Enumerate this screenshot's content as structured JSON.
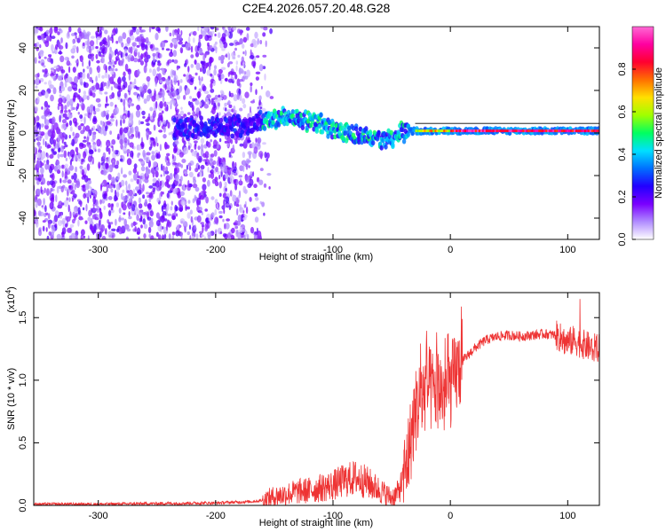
{
  "figure_title": "C2E4.2026.057.20.48.G28",
  "chart_data": [
    {
      "type": "heatmap",
      "title": "C2E4.2026.057.20.48.G28",
      "xlabel": "Height of straight line (km)",
      "ylabel": "Frequency (Hz)",
      "xlim": [
        -355,
        127
      ],
      "ylim": [
        -50,
        50
      ],
      "xticks": [
        -300,
        -200,
        -100,
        0,
        100
      ],
      "yticks": [
        -40,
        -20,
        0,
        20,
        40
      ],
      "xtick_labels": [
        "-300",
        "-200",
        "-100",
        "0",
        "100"
      ],
      "ytick_labels": [
        "-40",
        "-20",
        "0",
        "20",
        "40"
      ],
      "colorbar": {
        "label": "Normalized spectral amplitude",
        "range": [
          0,
          1
        ],
        "ticks": [
          0.0,
          0.2,
          0.4,
          0.6,
          0.8
        ],
        "tick_labels": [
          "0.0",
          "0.2",
          "0.4",
          "0.6",
          "0.8"
        ],
        "colormap": [
          "#ffffff",
          "#b08cff",
          "#7a00ff",
          "#2200ff",
          "#0070ff",
          "#00e0ff",
          "#00ff60",
          "#a0ff00",
          "#ffe000",
          "#ff7000",
          "#ff0030",
          "#ff00a0",
          "#ff6ad5"
        ]
      },
      "ridge": [
        {
          "x": -230,
          "y": 2
        },
        {
          "x": -200,
          "y": 3
        },
        {
          "x": -170,
          "y": 4
        },
        {
          "x": -150,
          "y": 7
        },
        {
          "x": -130,
          "y": 7
        },
        {
          "x": -110,
          "y": 4
        },
        {
          "x": -90,
          "y": 0
        },
        {
          "x": -70,
          "y": -2
        },
        {
          "x": -55,
          "y": -4
        },
        {
          "x": -45,
          "y": 0
        },
        {
          "x": -30,
          "y": 1
        },
        {
          "x": -10,
          "y": 1
        },
        {
          "x": 0,
          "y": 1
        },
        {
          "x": 50,
          "y": 1
        },
        {
          "x": 90,
          "y": 1
        },
        {
          "x": 127,
          "y": 1
        }
      ],
      "notes_band": "Strong narrow line near 0 Hz for heights above -30 km; broadband noise for heights below -160 km"
    },
    {
      "type": "line",
      "xlabel": "Height of straight line (km)",
      "ylabel": "SNR (10 * v/v)",
      "y_multiplier": "(x10^4)",
      "y_multiplier_base": "(x10",
      "y_multiplier_exp": "4",
      "y_multiplier_close": ")",
      "xlim": [
        -355,
        127
      ],
      "ylim": [
        0,
        1.7
      ],
      "xticks": [
        -300,
        -200,
        -100,
        0,
        100
      ],
      "yticks": [
        0.0,
        0.5,
        1.0,
        1.5
      ],
      "xtick_labels": [
        "-300",
        "-200",
        "-100",
        "0",
        "100"
      ],
      "ytick_labels": [
        "0.0",
        "0.5",
        "1.0",
        "1.5"
      ],
      "series": [
        {
          "name": "SNR",
          "color": "#ee3333",
          "x": [
            -355,
            -300,
            -250,
            -200,
            -170,
            -160,
            -150,
            -140,
            -130,
            -120,
            -110,
            -100,
            -90,
            -80,
            -70,
            -60,
            -50,
            -45,
            -40,
            -35,
            -30,
            -25,
            -20,
            -15,
            -10,
            -5,
            0,
            5,
            10,
            20,
            30,
            40,
            50,
            60,
            70,
            80,
            90,
            95,
            100,
            105,
            110,
            115,
            120,
            127
          ],
          "values": [
            0.01,
            0.01,
            0.015,
            0.02,
            0.03,
            0.04,
            0.07,
            0.09,
            0.11,
            0.12,
            0.14,
            0.16,
            0.2,
            0.22,
            0.18,
            0.12,
            0.06,
            0.1,
            0.2,
            0.45,
            0.75,
            0.85,
            0.95,
            0.9,
            0.95,
            0.88,
            0.95,
            1.05,
            1.15,
            1.25,
            1.32,
            1.35,
            1.36,
            1.35,
            1.36,
            1.37,
            1.36,
            1.33,
            1.3,
            1.32,
            1.3,
            1.28,
            1.26,
            1.25
          ]
        }
      ]
    }
  ]
}
